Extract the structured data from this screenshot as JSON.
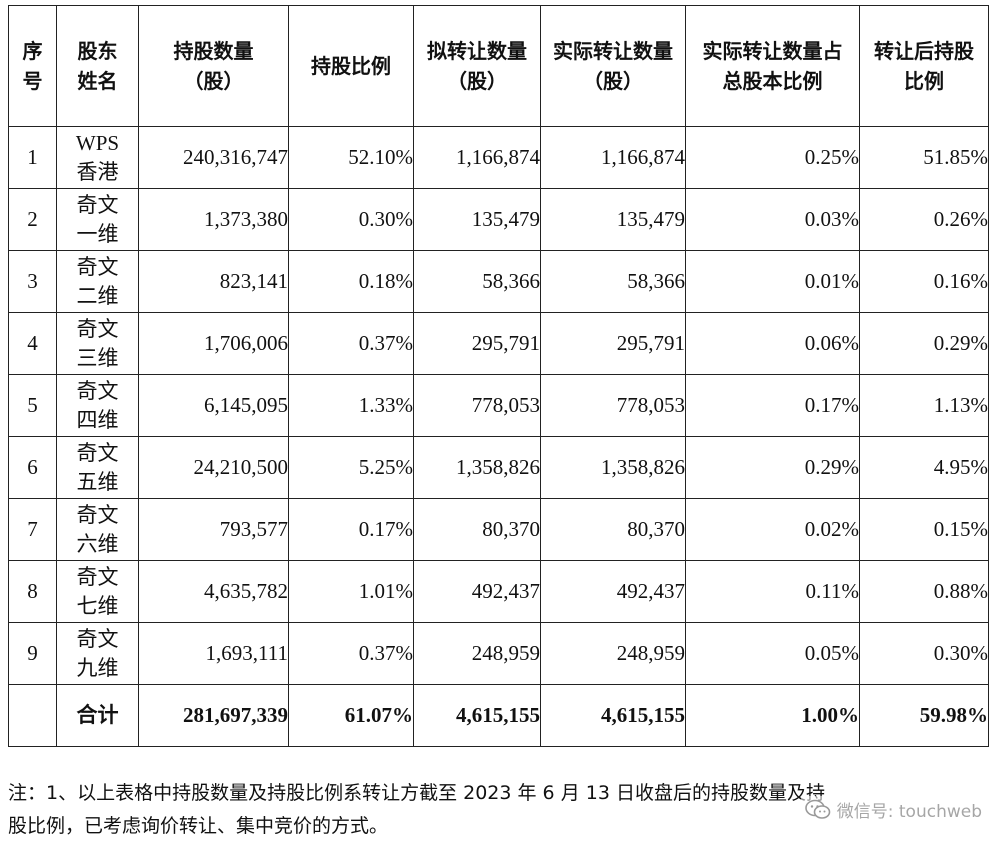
{
  "table": {
    "headers": [
      "序号",
      "股东姓名",
      "持股数量（股）",
      "持股比例",
      "拟转让数量（股）",
      "实际转让数量（股）",
      "实际转让数量占总股本比例",
      "转让后持股比例"
    ],
    "rows": [
      {
        "idx": "1",
        "name_top": "WPS",
        "name_bottom": "香港",
        "shares": "240,316,747",
        "ratio": "52.10%",
        "planned": "1,166,874",
        "actual": "1,166,874",
        "actual_ratio": "0.25%",
        "after_ratio": "51.85%"
      },
      {
        "idx": "2",
        "name_top": "奇文",
        "name_bottom": "一维",
        "shares": "1,373,380",
        "ratio": "0.30%",
        "planned": "135,479",
        "actual": "135,479",
        "actual_ratio": "0.03%",
        "after_ratio": "0.26%"
      },
      {
        "idx": "3",
        "name_top": "奇文",
        "name_bottom": "二维",
        "shares": "823,141",
        "ratio": "0.18%",
        "planned": "58,366",
        "actual": "58,366",
        "actual_ratio": "0.01%",
        "after_ratio": "0.16%"
      },
      {
        "idx": "4",
        "name_top": "奇文",
        "name_bottom": "三维",
        "shares": "1,706,006",
        "ratio": "0.37%",
        "planned": "295,791",
        "actual": "295,791",
        "actual_ratio": "0.06%",
        "after_ratio": "0.29%"
      },
      {
        "idx": "5",
        "name_top": "奇文",
        "name_bottom": "四维",
        "shares": "6,145,095",
        "ratio": "1.33%",
        "planned": "778,053",
        "actual": "778,053",
        "actual_ratio": "0.17%",
        "after_ratio": "1.13%"
      },
      {
        "idx": "6",
        "name_top": "奇文",
        "name_bottom": "五维",
        "shares": "24,210,500",
        "ratio": "5.25%",
        "planned": "1,358,826",
        "actual": "1,358,826",
        "actual_ratio": "0.29%",
        "after_ratio": "4.95%"
      },
      {
        "idx": "7",
        "name_top": "奇文",
        "name_bottom": "六维",
        "shares": "793,577",
        "ratio": "0.17%",
        "planned": "80,370",
        "actual": "80,370",
        "actual_ratio": "0.02%",
        "after_ratio": "0.15%"
      },
      {
        "idx": "8",
        "name_top": "奇文",
        "name_bottom": "七维",
        "shares": "4,635,782",
        "ratio": "1.01%",
        "planned": "492,437",
        "actual": "492,437",
        "actual_ratio": "0.11%",
        "after_ratio": "0.88%"
      },
      {
        "idx": "9",
        "name_top": "奇文",
        "name_bottom": "九维",
        "shares": "1,693,111",
        "ratio": "0.37%",
        "planned": "248,959",
        "actual": "248,959",
        "actual_ratio": "0.05%",
        "after_ratio": "0.30%"
      }
    ],
    "total": {
      "label": "合计",
      "shares": "281,697,339",
      "ratio": "61.07%",
      "planned": "4,615,155",
      "actual": "4,615,155",
      "actual_ratio": "1.00%",
      "after_ratio": "59.98%"
    }
  },
  "note": {
    "line1": "注：1、以上表格中持股数量及持股比例系转让方截至 2023 年 6 月 13 日收盘后的持股数量及持",
    "line2": "股比例，已考虑询价转让、集中竞价的方式。"
  },
  "watermark": {
    "icon": "wechat-icon",
    "text": "微信号: touchweb"
  }
}
